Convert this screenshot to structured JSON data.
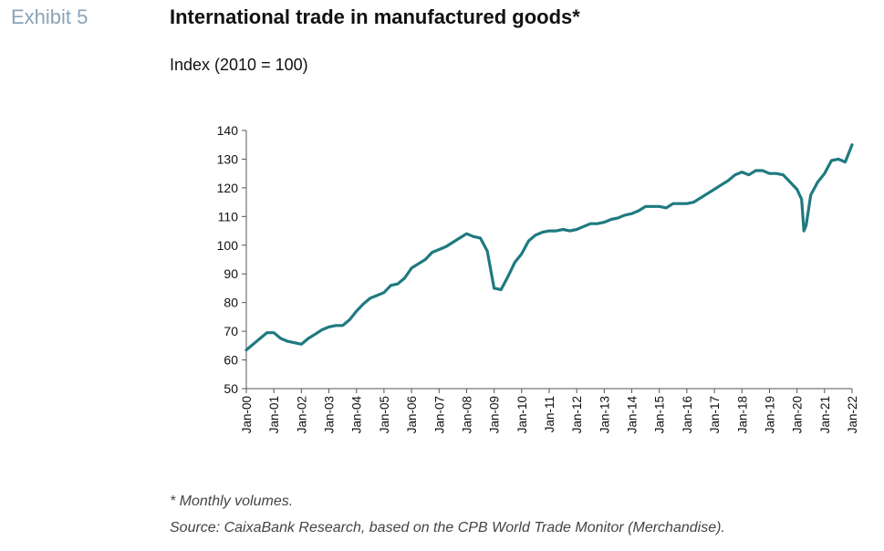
{
  "header": {
    "exhibit": "Exhibit 5",
    "title": "International trade in manufactured goods*",
    "subtitle": "Index (2010 = 100)"
  },
  "footer": {
    "note": "* Monthly volumes.",
    "source": "Source: CaixaBank Research, based on the CPB World Trade Monitor (Merchandise)."
  },
  "colors": {
    "line": "#1f7a80",
    "axis": "#555555"
  },
  "chart_data": {
    "type": "line",
    "title": "International trade in manufactured goods*",
    "ylabel": "Index (2010 = 100)",
    "ylim": [
      50,
      140
    ],
    "yticks": [
      50,
      60,
      70,
      80,
      90,
      100,
      110,
      120,
      130,
      140
    ],
    "xticks": [
      "Jan-00",
      "Jan-01",
      "Jan-02",
      "Jan-03",
      "Jan-04",
      "Jan-05",
      "Jan-06",
      "Jan-07",
      "Jan-08",
      "Jan-09",
      "Jan-10",
      "Jan-11",
      "Jan-12",
      "Jan-13",
      "Jan-14",
      "Jan-15",
      "Jan-16",
      "Jan-17",
      "Jan-18",
      "Jan-19",
      "Jan-20",
      "Jan-21",
      "Jan-22"
    ],
    "grid": false,
    "series": [
      {
        "x": [
          "Jan-00",
          "Apr-00",
          "Jul-00",
          "Oct-00",
          "Jan-01",
          "Apr-01",
          "Jul-01",
          "Oct-01",
          "Jan-02",
          "Apr-02",
          "Jul-02",
          "Oct-02",
          "Jan-03",
          "Apr-03",
          "Jul-03",
          "Oct-03",
          "Jan-04",
          "Apr-04",
          "Jul-04",
          "Oct-04",
          "Jan-05",
          "Apr-05",
          "Jul-05",
          "Oct-05",
          "Jan-06",
          "Apr-06",
          "Jul-06",
          "Oct-06",
          "Jan-07",
          "Apr-07",
          "Jul-07",
          "Oct-07",
          "Jan-08",
          "Apr-08",
          "Jul-08",
          "Oct-08",
          "Jan-09",
          "Apr-09",
          "Jul-09",
          "Oct-09",
          "Jan-10",
          "Apr-10",
          "Jul-10",
          "Oct-10",
          "Jan-11",
          "Apr-11",
          "Jul-11",
          "Oct-11",
          "Jan-12",
          "Apr-12",
          "Jul-12",
          "Oct-12",
          "Jan-13",
          "Apr-13",
          "Jul-13",
          "Oct-13",
          "Jan-14",
          "Apr-14",
          "Jul-14",
          "Oct-14",
          "Jan-15",
          "Apr-15",
          "Jul-15",
          "Oct-15",
          "Jan-16",
          "Apr-16",
          "Jul-16",
          "Oct-16",
          "Jan-17",
          "Apr-17",
          "Jul-17",
          "Oct-17",
          "Jan-18",
          "Apr-18",
          "Jul-18",
          "Oct-18",
          "Jan-19",
          "Apr-19",
          "Jul-19",
          "Oct-19",
          "Jan-20",
          "Mar-20",
          "Apr-20",
          "May-20",
          "Jul-20",
          "Oct-20",
          "Jan-21",
          "Apr-21",
          "Jul-21",
          "Oct-21",
          "Jan-22"
        ],
        "values": [
          63.5,
          65.5,
          67.5,
          69.5,
          69.5,
          67.5,
          66.5,
          66,
          65.5,
          67.5,
          69,
          70.5,
          71.5,
          72,
          72,
          74,
          77,
          79.5,
          81.5,
          82.5,
          83.5,
          86,
          86.5,
          88.5,
          92,
          93.5,
          95,
          97.5,
          98.5,
          99.5,
          101,
          102.5,
          104,
          103,
          102.5,
          98,
          85,
          84.5,
          89,
          94,
          97,
          101.5,
          103.5,
          104.5,
          105,
          105,
          105.5,
          105,
          105.5,
          106.5,
          107.5,
          107.5,
          108,
          109,
          109.5,
          110.5,
          111,
          112,
          113.5,
          113.5,
          113.5,
          113,
          114.5,
          114.5,
          114.5,
          115,
          116.5,
          118,
          119.5,
          121,
          122.5,
          124.5,
          125.5,
          124.5,
          126,
          126,
          125,
          125,
          124.5,
          122,
          119.5,
          116,
          105,
          107,
          117.5,
          122,
          125,
          129.5,
          130,
          129,
          135
        ]
      }
    ]
  }
}
